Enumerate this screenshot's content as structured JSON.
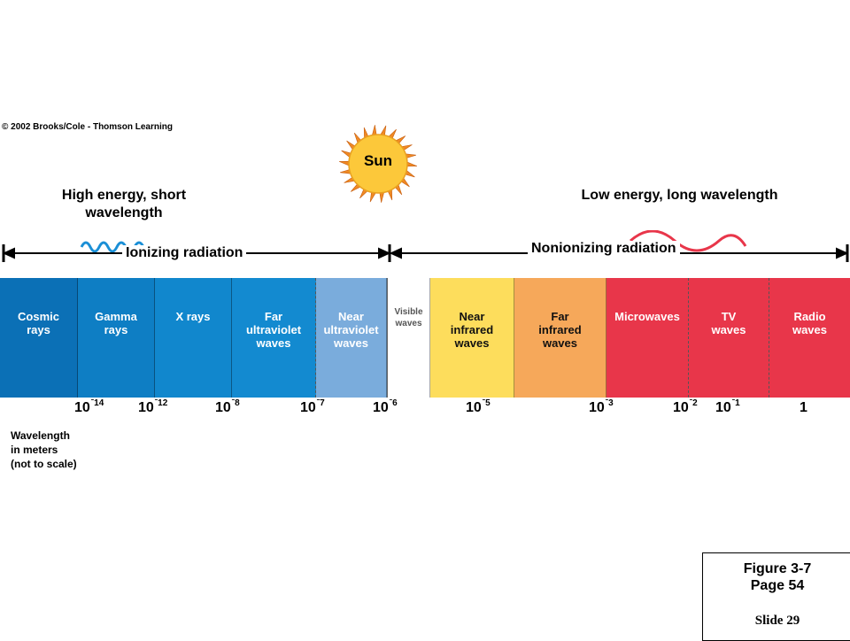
{
  "copyright": "© 2002 Brooks/Cole - Thomson Learning",
  "sun_label": "Sun",
  "headings": {
    "high": "High energy, short wavelength",
    "low": "Low energy, long wavelength"
  },
  "radiation": {
    "ionizing": "Ionizing radiation",
    "nonionizing": "Nonionizing radiation"
  },
  "bands": [
    {
      "label": "Cosmic\nrays",
      "color": "#0b70b6"
    },
    {
      "label": "Gamma\nrays",
      "color": "#0e7ec4"
    },
    {
      "label": "X rays",
      "color": "#1187cd"
    },
    {
      "label": "Far\nultraviolet\nwaves",
      "color": "#138ad0"
    },
    {
      "label": "Near\nultraviolet\nwaves",
      "color": "#7aacdc"
    },
    {
      "label": "Visible\nwaves",
      "color": "#ffffff"
    },
    {
      "label": "Near\ninfrared\nwaves",
      "color": "#fddd5c"
    },
    {
      "label": "Far\ninfrared\nwaves",
      "color": "#f6a85a"
    },
    {
      "label": "Microwaves",
      "color": "#e8364a"
    },
    {
      "label": "TV\nwaves",
      "color": "#e8364a"
    },
    {
      "label": "Radio\nwaves",
      "color": "#e8364a"
    }
  ],
  "ticks": [
    {
      "base": "10",
      "exp": "-14"
    },
    {
      "base": "10",
      "exp": "-12"
    },
    {
      "base": "10",
      "exp": "-8"
    },
    {
      "base": "10",
      "exp": "-7"
    },
    {
      "base": "10",
      "exp": "-6"
    },
    {
      "base": "10",
      "exp": "-5"
    },
    {
      "base": "10",
      "exp": "-3"
    },
    {
      "base": "10",
      "exp": "-2"
    },
    {
      "base": "10",
      "exp": "-1"
    },
    {
      "base": "1",
      "exp": ""
    }
  ],
  "note": "Wavelength\nin meters\n(not to scale)",
  "figure": {
    "title": "Figure 3-7",
    "page": "Page 54",
    "slide": "Slide 29"
  }
}
